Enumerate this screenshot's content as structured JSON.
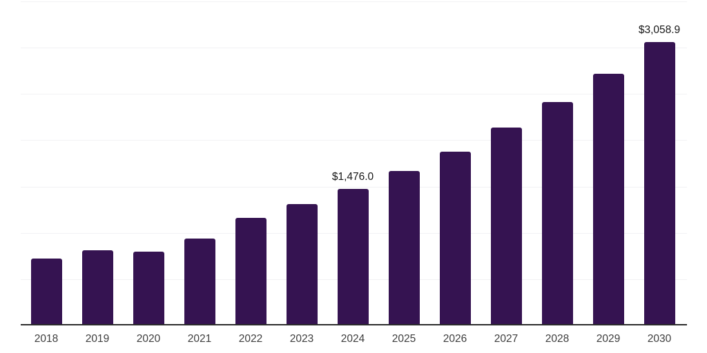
{
  "chart_data": {
    "type": "bar",
    "categories": [
      "2018",
      "2019",
      "2020",
      "2021",
      "2022",
      "2023",
      "2024",
      "2025",
      "2026",
      "2027",
      "2028",
      "2029",
      "2030"
    ],
    "values": [
      720.0,
      815.0,
      800.0,
      940.0,
      1165.0,
      1310.0,
      1476.0,
      1665.0,
      1880.0,
      2135.0,
      2410.0,
      2715.0,
      3058.9
    ],
    "annotations": [
      {
        "category": "2024",
        "text": "$1,476.0"
      },
      {
        "category": "2030",
        "text": "$3,058.9"
      }
    ],
    "xlabel": "",
    "ylabel": "",
    "ylim": [
      0,
      3500
    ],
    "grid_step": 500,
    "grid": true,
    "legend": false,
    "colors": {
      "bar": "#351351",
      "grid": "#f2f2f4",
      "axis": "#2b2b2b",
      "tick_label": "#3d3d3d",
      "annotation": "#161616",
      "background": "#ffffff"
    }
  }
}
